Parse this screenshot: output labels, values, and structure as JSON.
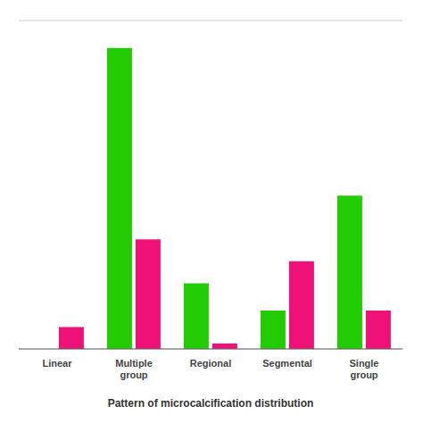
{
  "chart_data": {
    "type": "bar",
    "xlabel": "Pattern of microcalcification distribution",
    "categories": [
      "Linear",
      "Multiple group",
      "Regional",
      "Segmental",
      "Single group"
    ],
    "series": [
      {
        "color": "#22cc00",
        "values": [
          0,
          55,
          12,
          7,
          28
        ]
      },
      {
        "color": "#ee1177",
        "values": [
          4,
          20,
          1,
          16,
          7
        ]
      }
    ],
    "ylim": [
      0,
      60
    ],
    "yticks": [
      10,
      20,
      30,
      40,
      50,
      60
    ],
    "grid": true,
    "tick_labels": "x"
  }
}
